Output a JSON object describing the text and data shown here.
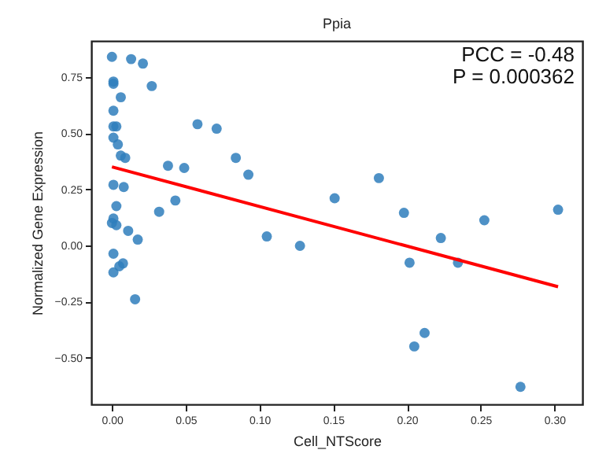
{
  "chart_data": {
    "type": "scatter",
    "title": "Ppia",
    "xlabel": "Cell_NTScore",
    "ylabel": "Normalized Gene Expression",
    "annotations": [
      "PCC = -0.48",
      "P = 0.000362"
    ],
    "xlim": [
      -0.014,
      0.319
    ],
    "ylim": [
      -0.708,
      0.911
    ],
    "xticks": [
      {
        "value": 0,
        "label": "0.00"
      },
      {
        "value": 0.05,
        "label": "0.05"
      },
      {
        "value": 0.1,
        "label": "0.10"
      },
      {
        "value": 0.15,
        "label": "0.15"
      },
      {
        "value": 0.2,
        "label": "0.20"
      },
      {
        "value": 0.25,
        "label": "0.25"
      },
      {
        "value": 0.3,
        "label": "0.30"
      }
    ],
    "yticks": [
      {
        "value": -0.5,
        "label": "−0.50"
      },
      {
        "value": -0.25,
        "label": "−0.25"
      },
      {
        "value": 0,
        "label": "0.00"
      },
      {
        "value": 0.25,
        "label": "0.25"
      },
      {
        "value": 0.5,
        "label": "0.50"
      },
      {
        "value": 0.75,
        "label": "0.75"
      }
    ],
    "grid": false,
    "marker": "circle",
    "series": [
      {
        "color": "#2f7ebc",
        "x": [
          0.0,
          0.013,
          0.021,
          0.001,
          0.001,
          0.027,
          0.006,
          0.001,
          0.058,
          0.071,
          0.001,
          0.003,
          0.001,
          0.004,
          0.006,
          0.009,
          0.084,
          0.0925,
          0.038,
          0.049,
          0.001,
          0.008,
          0.003,
          0.043,
          0.032,
          0.001,
          0.0,
          0.003,
          0.011,
          0.0175,
          0.001,
          0.0075,
          0.005,
          0.001,
          0.0157,
          0.151,
          0.181,
          0.198,
          0.2525,
          0.3025,
          0.105,
          0.223,
          0.1275,
          0.2018,
          0.2346,
          0.212,
          0.205,
          0.277
        ],
        "values": [
          0.84,
          0.83,
          0.81,
          0.73,
          0.72,
          0.71,
          0.66,
          0.6,
          0.54,
          0.52,
          0.53,
          0.53,
          0.48,
          0.45,
          0.4,
          0.39,
          0.39,
          0.315,
          0.355,
          0.345,
          0.27,
          0.26,
          0.175,
          0.2,
          0.15,
          0.12,
          0.1,
          0.09,
          0.065,
          0.026,
          -0.037,
          -0.08,
          -0.093,
          -0.12,
          -0.24,
          0.21,
          0.3,
          0.145,
          0.112,
          0.159,
          0.04,
          0.033,
          -0.002,
          -0.077,
          -0.077,
          -0.39,
          -0.45,
          -0.63
        ]
      },
      {
        "type": "line",
        "marker": "none",
        "color": "#ff0000",
        "x": [
          0.0,
          0.3025
        ],
        "values": [
          0.35,
          -0.184
        ]
      }
    ]
  }
}
